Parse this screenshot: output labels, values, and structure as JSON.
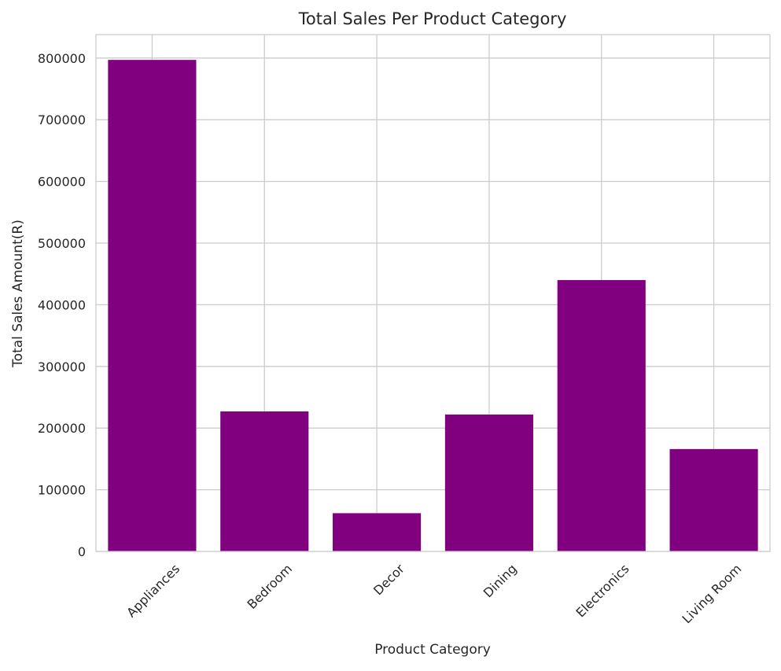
{
  "chart_data": {
    "type": "bar",
    "title": "Total Sales Per Product Category",
    "xlabel": "Product Category",
    "ylabel": "Total Sales Amount(R)",
    "categories": [
      "Appliances",
      "Bedroom",
      "Decor",
      "Dining",
      "Electronics",
      "Living Room"
    ],
    "values": [
      797000,
      227000,
      62000,
      222000,
      440000,
      166000
    ],
    "ylim": [
      0,
      838000
    ],
    "yticks": [
      0,
      100000,
      200000,
      300000,
      400000,
      500000,
      600000,
      700000,
      800000
    ],
    "ytick_labels": [
      "0",
      "100000",
      "200000",
      "300000",
      "400000",
      "500000",
      "600000",
      "700000",
      "800000"
    ],
    "bar_color": "#800080",
    "grid": true,
    "legend": "none"
  }
}
